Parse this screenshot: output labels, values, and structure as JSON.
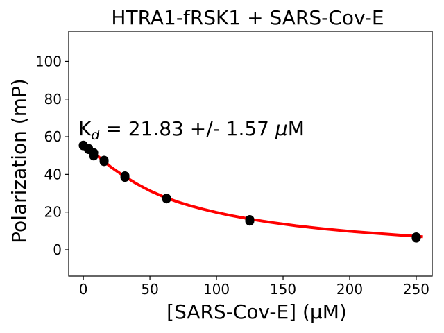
{
  "chart_data": {
    "type": "scatter",
    "title": "HTRA1-fRSK1 + SARS-Cov-E",
    "xlabel": "[SARS-Cov-E] (µM)",
    "ylabel": "Polarization (mP)",
    "xlim": [
      -11,
      262
    ],
    "ylim": [
      -14,
      116
    ],
    "xticks": [
      0,
      50,
      100,
      150,
      200,
      250
    ],
    "yticks": [
      0,
      20,
      40,
      60,
      80,
      100
    ],
    "grid": false,
    "annotation": {
      "kd_prefix": "K",
      "kd_subscript": "d",
      "kd_rest": " = 21.83 +/- 1.57 ",
      "kd_unit_mu": "μ",
      "kd_unit": "M"
    },
    "series": [
      {
        "type": "scatter",
        "color": "#000000",
        "x": [
          0,
          0,
          3.9,
          3.9,
          7.8,
          7.8,
          15.6,
          15.6,
          31.25,
          31.25,
          62.5,
          62.5,
          125,
          125,
          250,
          250
        ],
        "y": [
          55.5,
          55.2,
          53.8,
          53.2,
          51.5,
          49.8,
          47.5,
          46.8,
          39.2,
          38.4,
          27.4,
          27.0,
          16.0,
          15.2,
          6.8,
          6.2
        ]
      },
      {
        "type": "line",
        "color": "#ff0000",
        "x": [
          7,
          10,
          15,
          20,
          25,
          30,
          40,
          50,
          60,
          70,
          80,
          90,
          100,
          110,
          125,
          140,
          160,
          180,
          200,
          220,
          240,
          255
        ],
        "y": [
          52.0,
          50.2,
          47.3,
          44.3,
          41.8,
          39.4,
          35.0,
          31.3,
          28.2,
          25.6,
          23.4,
          21.5,
          19.8,
          18.3,
          16.3,
          14.6,
          12.7,
          11.1,
          9.8,
          8.7,
          7.6,
          6.9
        ]
      }
    ]
  }
}
